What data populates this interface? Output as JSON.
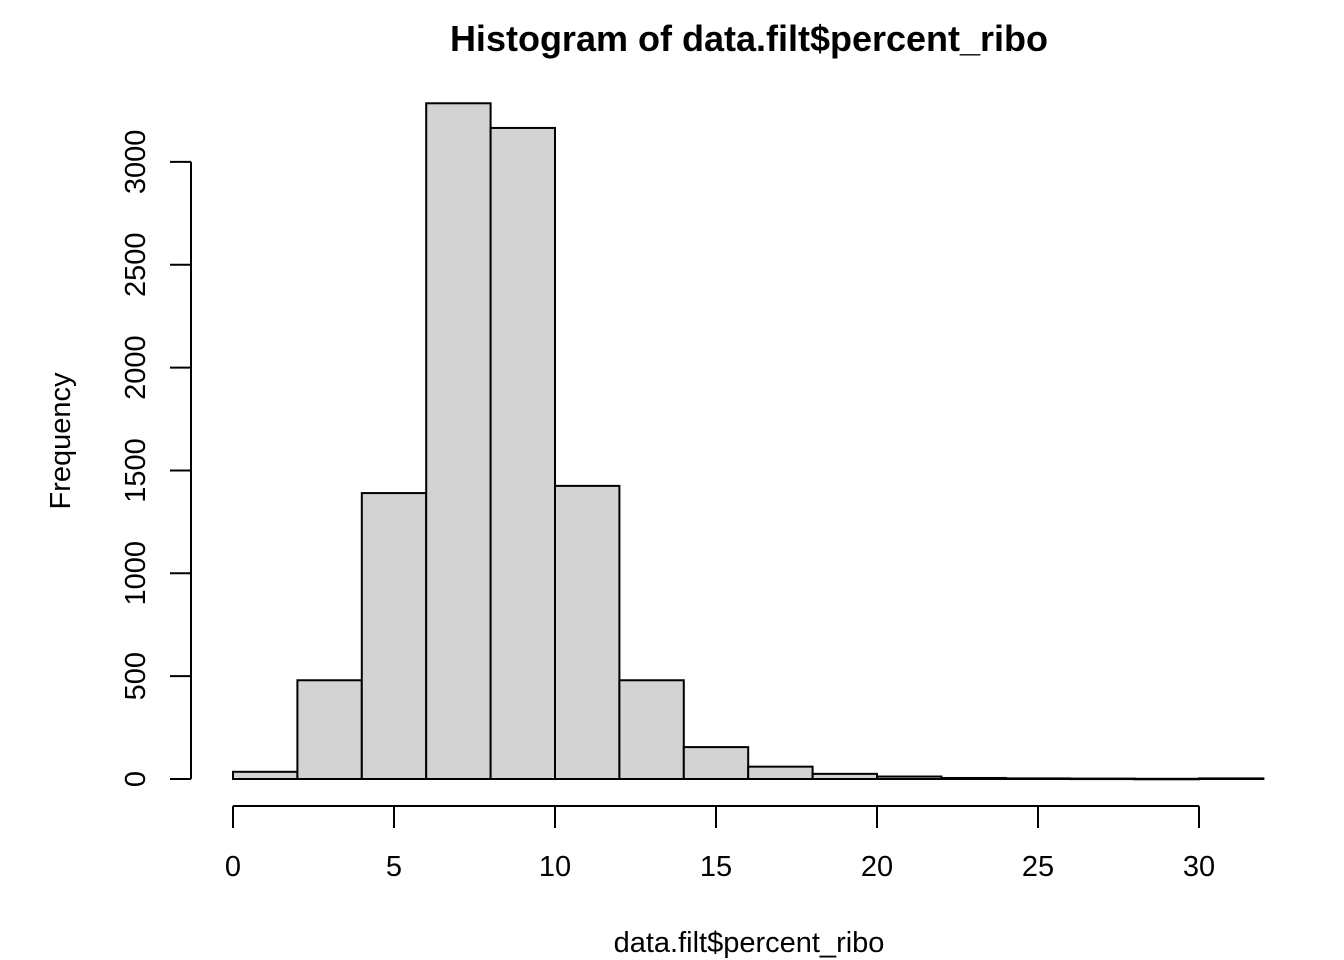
{
  "chart_data": {
    "type": "bar",
    "title": "Histogram of data.filt$percent_ribo",
    "xlabel": "data.filt$percent_ribo",
    "ylabel": "Frequency",
    "bin_width": 2,
    "bins": [
      {
        "start": 0,
        "end": 2,
        "count": 35
      },
      {
        "start": 2,
        "end": 4,
        "count": 480
      },
      {
        "start": 4,
        "end": 6,
        "count": 1390
      },
      {
        "start": 6,
        "end": 8,
        "count": 3285
      },
      {
        "start": 8,
        "end": 10,
        "count": 3165
      },
      {
        "start": 10,
        "end": 12,
        "count": 1425
      },
      {
        "start": 12,
        "end": 14,
        "count": 480
      },
      {
        "start": 14,
        "end": 16,
        "count": 155
      },
      {
        "start": 16,
        "end": 18,
        "count": 60
      },
      {
        "start": 18,
        "end": 20,
        "count": 25
      },
      {
        "start": 20,
        "end": 22,
        "count": 12
      },
      {
        "start": 22,
        "end": 24,
        "count": 5
      },
      {
        "start": 24,
        "end": 26,
        "count": 3
      },
      {
        "start": 26,
        "end": 28,
        "count": 2
      },
      {
        "start": 28,
        "end": 30,
        "count": 1
      },
      {
        "start": 30,
        "end": 32,
        "count": 3
      }
    ],
    "x_ticks": [
      0,
      5,
      10,
      15,
      20,
      25,
      30
    ],
    "y_ticks": [
      0,
      500,
      1000,
      1500,
      2000,
      2500,
      3000
    ],
    "xlim": [
      0,
      32
    ],
    "ylim": [
      0,
      3300
    ],
    "bar_fill": "#d3d3d3",
    "bar_stroke": "#000000",
    "grid": false,
    "legend": "none"
  }
}
